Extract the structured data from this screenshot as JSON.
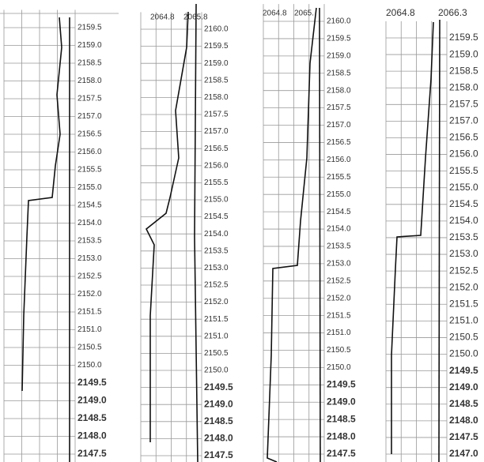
{
  "panels": [
    {
      "headers": [],
      "depths": [
        "2159.5",
        "2159.0",
        "2158.5",
        "2158.0",
        "2157.5",
        "2157.0",
        "2156.5",
        "2156.0",
        "2155.5",
        "2155.0",
        "2154.5",
        "2154.0",
        "2153.5",
        "2153.0",
        "2152.5",
        "2152.0",
        "2151.5",
        "2151.0",
        "2150.5",
        "2150.0",
        "2149.5",
        "2149.0",
        "2148.5",
        "2148.0",
        "2147.5"
      ]
    },
    {
      "headers": [
        "2064.8",
        "2065.8"
      ],
      "depths": [
        "2160.0",
        "2159.5",
        "2159.0",
        "2158.5",
        "2158.0",
        "2157.5",
        "2157.0",
        "2156.5",
        "2156.0",
        "2155.5",
        "2155.0",
        "2154.5",
        "2154.0",
        "2153.5",
        "2153.0",
        "2152.5",
        "2152.0",
        "2151.5",
        "2151.0",
        "2150.5",
        "2150.0",
        "2149.5",
        "2149.0",
        "2148.5",
        "2148.0",
        "2147.5"
      ]
    },
    {
      "headers": [
        "2064.8",
        "2065."
      ],
      "depths": [
        "2160.0",
        "2159.5",
        "2159.0",
        "2158.5",
        "2158.0",
        "2157.5",
        "2157.0",
        "2156.5",
        "2156.0",
        "2155.5",
        "2155.0",
        "2154.5",
        "2154.0",
        "2153.5",
        "2153.0",
        "2152.5",
        "2152.0",
        "2151.5",
        "2151.0",
        "2150.5",
        "2150.0",
        "2149.5",
        "2149.0",
        "2148.5",
        "2148.0",
        "2147.5"
      ]
    },
    {
      "headers": [
        "2064.8",
        "2066.3"
      ],
      "depths": [
        "2159.5",
        "2159.0",
        "2158.5",
        "2158.0",
        "2157.5",
        "2157.0",
        "2156.5",
        "2156.0",
        "2155.5",
        "2155.0",
        "2154.5",
        "2154.0",
        "2153.5",
        "2153.0",
        "2152.5",
        "2152.0",
        "2151.5",
        "2151.0",
        "2150.5",
        "2150.0",
        "2149.5",
        "2149.0",
        "2148.5",
        "2148.0",
        "2147.5",
        "2147.0"
      ]
    }
  ]
}
